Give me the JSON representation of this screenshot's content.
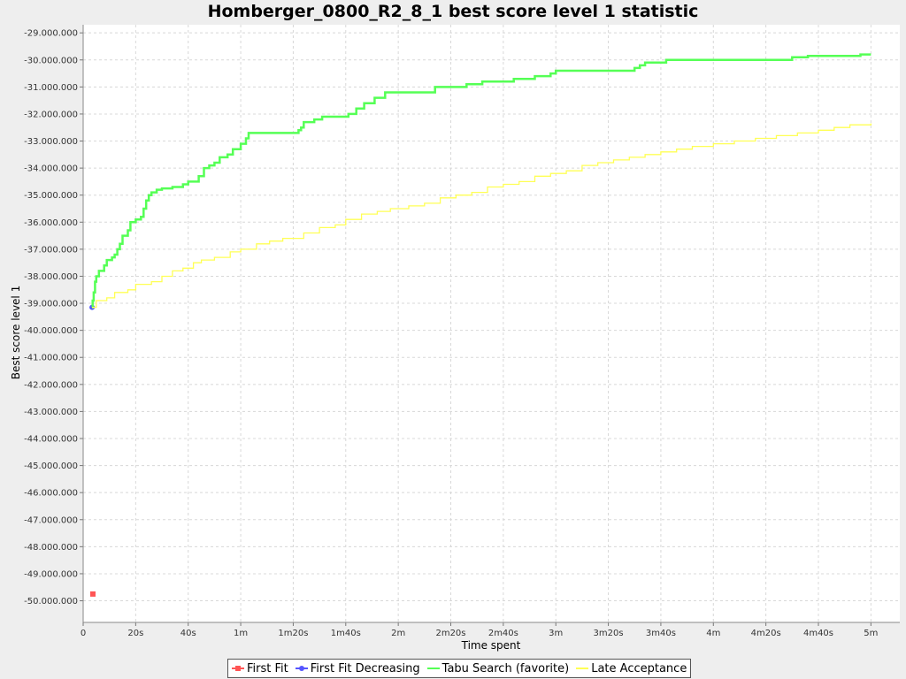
{
  "chart_data": {
    "type": "line",
    "title": "Homberger_0800_R2_8_1 best score level 1 statistic",
    "xlabel": "Time spent",
    "ylabel": "Best score level 1",
    "xlim_seconds": [
      0,
      311
    ],
    "ylim": [
      -50800000,
      -28700000
    ],
    "x_ticks": [
      {
        "value": 0,
        "label": "0"
      },
      {
        "value": 20,
        "label": "20s"
      },
      {
        "value": 40,
        "label": "40s"
      },
      {
        "value": 60,
        "label": "1m"
      },
      {
        "value": 80,
        "label": "1m20s"
      },
      {
        "value": 100,
        "label": "1m40s"
      },
      {
        "value": 120,
        "label": "2m"
      },
      {
        "value": 140,
        "label": "2m20s"
      },
      {
        "value": 160,
        "label": "2m40s"
      },
      {
        "value": 180,
        "label": "3m"
      },
      {
        "value": 200,
        "label": "3m20s"
      },
      {
        "value": 220,
        "label": "3m40s"
      },
      {
        "value": 240,
        "label": "4m"
      },
      {
        "value": 260,
        "label": "4m20s"
      },
      {
        "value": 280,
        "label": "4m40s"
      },
      {
        "value": 300,
        "label": "5m"
      }
    ],
    "y_ticks": [
      {
        "value": -29000000,
        "label": "-29.000.000"
      },
      {
        "value": -30000000,
        "label": "-30.000.000"
      },
      {
        "value": -31000000,
        "label": "-31.000.000"
      },
      {
        "value": -32000000,
        "label": "-32.000.000"
      },
      {
        "value": -33000000,
        "label": "-33.000.000"
      },
      {
        "value": -34000000,
        "label": "-34.000.000"
      },
      {
        "value": -35000000,
        "label": "-35.000.000"
      },
      {
        "value": -36000000,
        "label": "-36.000.000"
      },
      {
        "value": -37000000,
        "label": "-37.000.000"
      },
      {
        "value": -38000000,
        "label": "-38.000.000"
      },
      {
        "value": -39000000,
        "label": "-39.000.000"
      },
      {
        "value": -40000000,
        "label": "-40.000.000"
      },
      {
        "value": -41000000,
        "label": "-41.000.000"
      },
      {
        "value": -42000000,
        "label": "-42.000.000"
      },
      {
        "value": -43000000,
        "label": "-43.000.000"
      },
      {
        "value": -44000000,
        "label": "-44.000.000"
      },
      {
        "value": -45000000,
        "label": "-45.000.000"
      },
      {
        "value": -46000000,
        "label": "-46.000.000"
      },
      {
        "value": -47000000,
        "label": "-47.000.000"
      },
      {
        "value": -48000000,
        "label": "-48.000.000"
      },
      {
        "value": -49000000,
        "label": "-49.000.000"
      },
      {
        "value": -50000000,
        "label": "-50.000.000"
      }
    ],
    "grid": true,
    "legend_position": "bottom",
    "series": [
      {
        "name": "First Fit",
        "color": "#ff5555",
        "marker": "square",
        "step": false,
        "points": [
          [
            3.7,
            -49750000
          ]
        ]
      },
      {
        "name": "First Fit Decreasing",
        "color": "#5555ff",
        "marker": "circle",
        "step": false,
        "points": [
          [
            3.4,
            -39150000
          ]
        ]
      },
      {
        "name": "Tabu Search (favorite)",
        "color": "#55ff55",
        "marker": "none",
        "step": true,
        "points": [
          [
            3.4,
            -39150000
          ],
          [
            3.6,
            -38900000
          ],
          [
            4,
            -38600000
          ],
          [
            4.5,
            -38200000
          ],
          [
            5,
            -38000000
          ],
          [
            6,
            -37800000
          ],
          [
            8,
            -37600000
          ],
          [
            9,
            -37400000
          ],
          [
            11,
            -37300000
          ],
          [
            12,
            -37200000
          ],
          [
            13,
            -37000000
          ],
          [
            14,
            -36800000
          ],
          [
            15,
            -36500000
          ],
          [
            17,
            -36300000
          ],
          [
            18,
            -36000000
          ],
          [
            20,
            -35900000
          ],
          [
            22,
            -35800000
          ],
          [
            23,
            -35500000
          ],
          [
            24,
            -35200000
          ],
          [
            25,
            -35000000
          ],
          [
            26,
            -34900000
          ],
          [
            28,
            -34800000
          ],
          [
            30,
            -34750000
          ],
          [
            34,
            -34700000
          ],
          [
            38,
            -34600000
          ],
          [
            40,
            -34500000
          ],
          [
            43,
            -34500000
          ],
          [
            44,
            -34300000
          ],
          [
            46,
            -34000000
          ],
          [
            48,
            -33900000
          ],
          [
            50,
            -33800000
          ],
          [
            52,
            -33600000
          ],
          [
            55,
            -33500000
          ],
          [
            57,
            -33300000
          ],
          [
            60,
            -33100000
          ],
          [
            62,
            -32900000
          ],
          [
            63,
            -32700000
          ],
          [
            66,
            -32700000
          ],
          [
            70,
            -32700000
          ],
          [
            80,
            -32700000
          ],
          [
            82,
            -32600000
          ],
          [
            83,
            -32500000
          ],
          [
            84,
            -32300000
          ],
          [
            88,
            -32200000
          ],
          [
            91,
            -32100000
          ],
          [
            101,
            -32000000
          ],
          [
            104,
            -31800000
          ],
          [
            107,
            -31600000
          ],
          [
            111,
            -31400000
          ],
          [
            115,
            -31200000
          ],
          [
            125,
            -31200000
          ],
          [
            132,
            -31200000
          ],
          [
            134,
            -31000000
          ],
          [
            140,
            -31000000
          ],
          [
            146,
            -30900000
          ],
          [
            152,
            -30800000
          ],
          [
            164,
            -30700000
          ],
          [
            170,
            -30700000
          ],
          [
            172,
            -30600000
          ],
          [
            178,
            -30500000
          ],
          [
            180,
            -30400000
          ],
          [
            208,
            -30400000
          ],
          [
            210,
            -30300000
          ],
          [
            212,
            -30200000
          ],
          [
            214,
            -30100000
          ],
          [
            222,
            -30000000
          ],
          [
            264,
            -30000000
          ],
          [
            270,
            -29900000
          ],
          [
            276,
            -29850000
          ],
          [
            285,
            -29850000
          ],
          [
            296,
            -29800000
          ],
          [
            300,
            -29800000
          ]
        ]
      },
      {
        "name": "Late Acceptance",
        "color": "#ffff55",
        "marker": "none",
        "step": true,
        "points": [
          [
            3.4,
            -39150000
          ],
          [
            5,
            -38900000
          ],
          [
            9,
            -38800000
          ],
          [
            12,
            -38600000
          ],
          [
            17,
            -38500000
          ],
          [
            20,
            -38300000
          ],
          [
            26,
            -38200000
          ],
          [
            30,
            -38000000
          ],
          [
            34,
            -37800000
          ],
          [
            38,
            -37700000
          ],
          [
            42,
            -37500000
          ],
          [
            45,
            -37400000
          ],
          [
            50,
            -37300000
          ],
          [
            56,
            -37100000
          ],
          [
            60,
            -37000000
          ],
          [
            66,
            -36800000
          ],
          [
            71,
            -36700000
          ],
          [
            76,
            -36600000
          ],
          [
            84,
            -36400000
          ],
          [
            90,
            -36200000
          ],
          [
            96,
            -36100000
          ],
          [
            100,
            -35900000
          ],
          [
            106,
            -35700000
          ],
          [
            112,
            -35600000
          ],
          [
            117,
            -35500000
          ],
          [
            124,
            -35400000
          ],
          [
            130,
            -35300000
          ],
          [
            136,
            -35100000
          ],
          [
            142,
            -35000000
          ],
          [
            148,
            -34900000
          ],
          [
            154,
            -34700000
          ],
          [
            160,
            -34600000
          ],
          [
            166,
            -34500000
          ],
          [
            172,
            -34300000
          ],
          [
            178,
            -34200000
          ],
          [
            184,
            -34100000
          ],
          [
            190,
            -33900000
          ],
          [
            196,
            -33800000
          ],
          [
            202,
            -33700000
          ],
          [
            208,
            -33600000
          ],
          [
            214,
            -33500000
          ],
          [
            220,
            -33400000
          ],
          [
            226,
            -33300000
          ],
          [
            232,
            -33200000
          ],
          [
            240,
            -33100000
          ],
          [
            248,
            -33000000
          ],
          [
            256,
            -32900000
          ],
          [
            264,
            -32800000
          ],
          [
            272,
            -32700000
          ],
          [
            280,
            -32600000
          ],
          [
            286,
            -32500000
          ],
          [
            292,
            -32400000
          ],
          [
            300,
            -32350000
          ]
        ]
      }
    ]
  }
}
